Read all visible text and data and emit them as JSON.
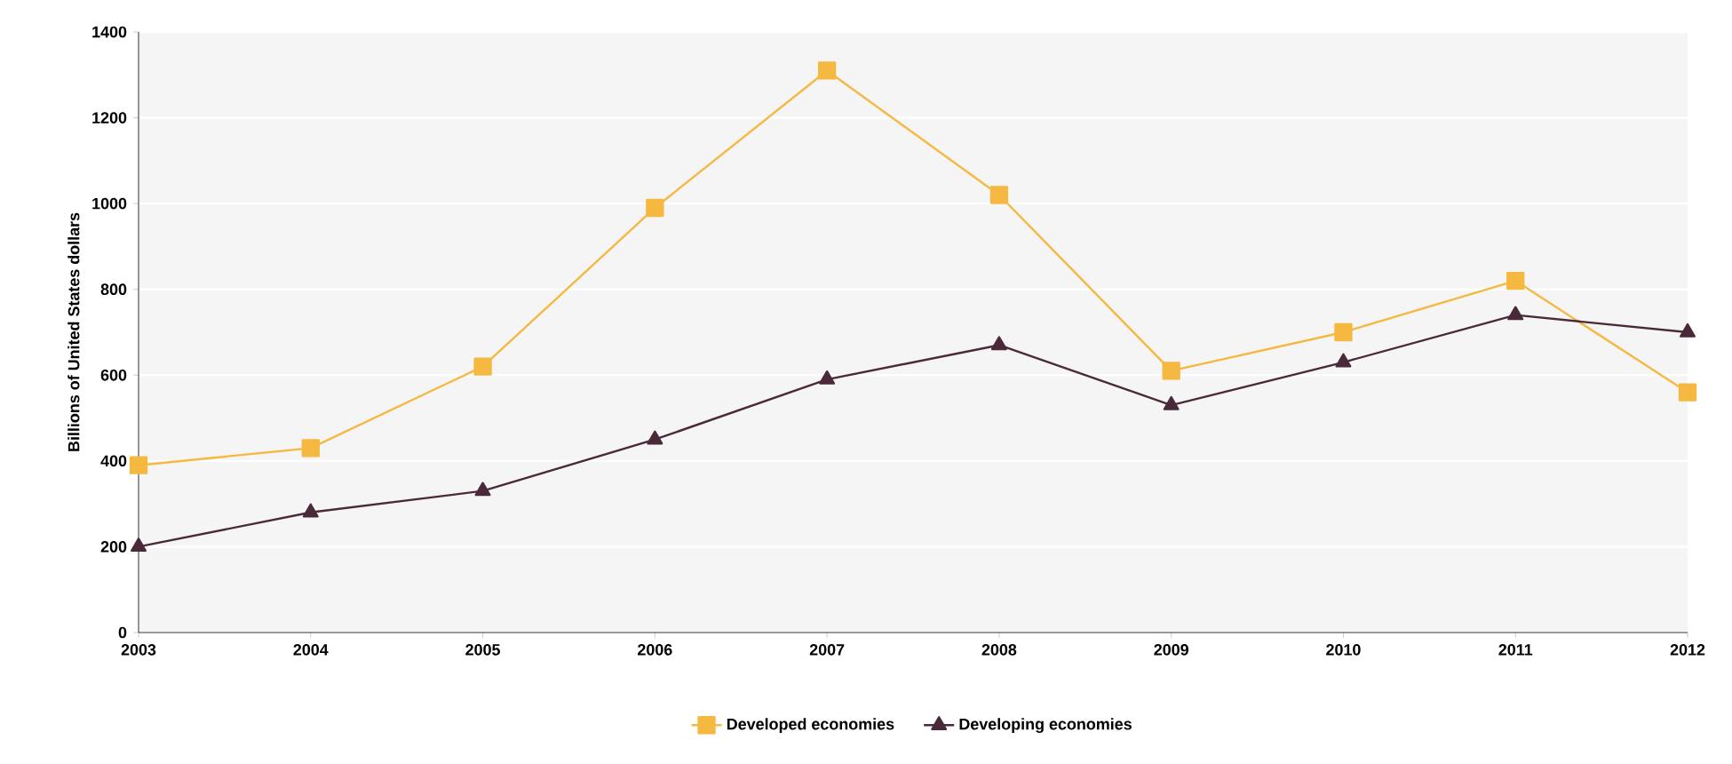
{
  "chart_data": {
    "type": "line",
    "ylabel": "Billions of United States dollars",
    "categories": [
      "2003",
      "2004",
      "2005",
      "2006",
      "2007",
      "2008",
      "2009",
      "2010",
      "2011",
      "2012"
    ],
    "series": [
      {
        "name": "Developed economies",
        "color": "#f5b841",
        "marker": "square",
        "values": [
          390,
          430,
          620,
          990,
          1310,
          1020,
          610,
          700,
          820,
          560
        ]
      },
      {
        "name": "Developing economies",
        "color": "#4a2a3a",
        "marker": "triangle",
        "values": [
          200,
          280,
          330,
          450,
          590,
          670,
          530,
          630,
          740,
          700
        ]
      }
    ],
    "ylim": [
      0,
      1400
    ],
    "yticks": [
      0,
      200,
      400,
      600,
      800,
      1000,
      1200,
      1400
    ],
    "grid": "y",
    "legend": "bottom"
  }
}
